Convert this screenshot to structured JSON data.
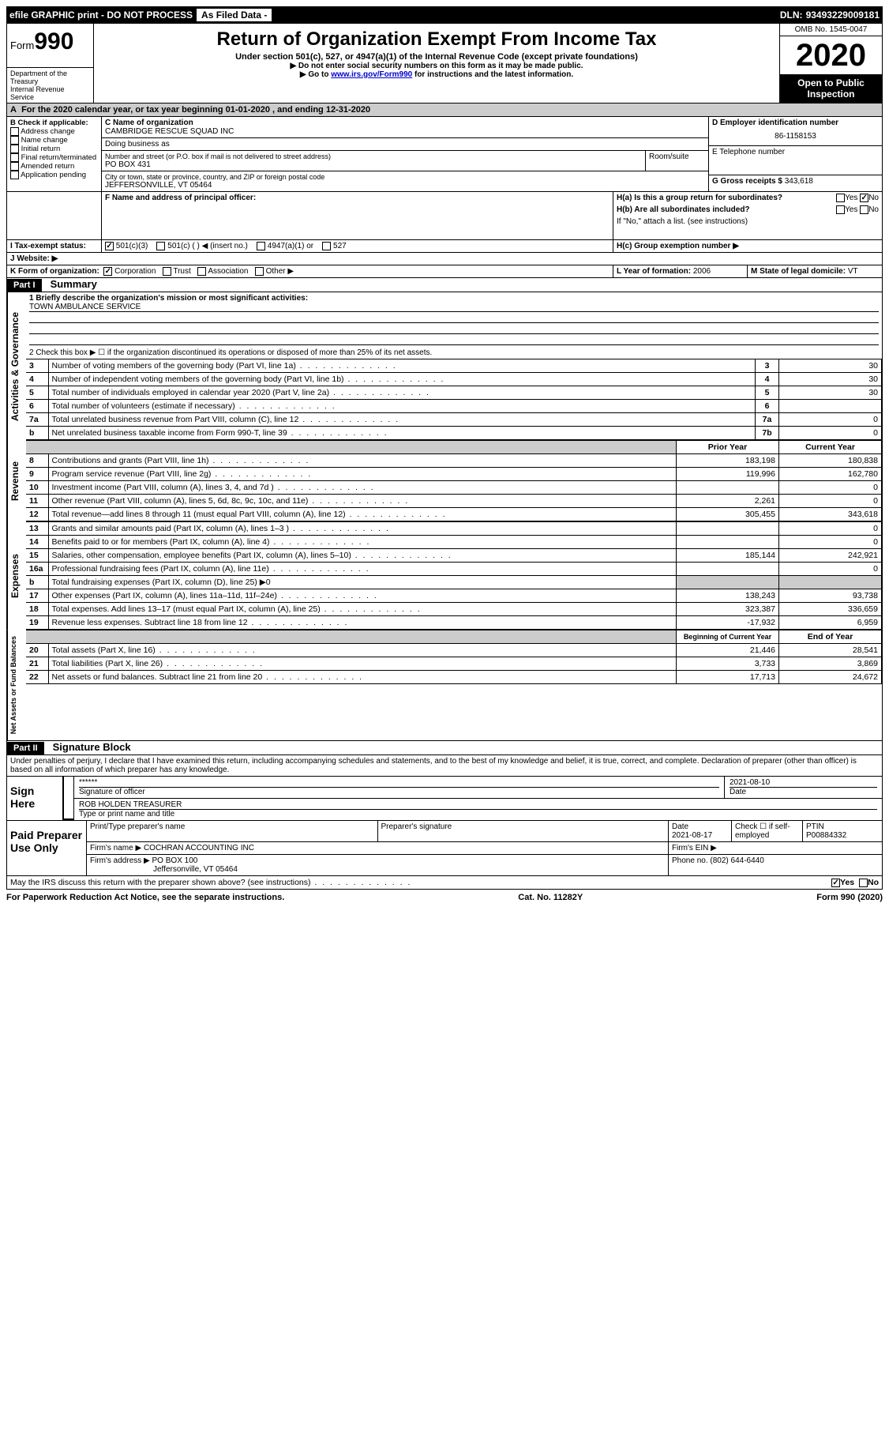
{
  "topbar": {
    "efile": "efile GRAPHIC print - DO NOT PROCESS",
    "asfiled": "As Filed Data -",
    "dln_label": "DLN:",
    "dln": "93493229009181"
  },
  "header": {
    "form_label": "Form",
    "form_num": "990",
    "dept1": "Department of the Treasury",
    "dept2": "Internal Revenue Service",
    "title": "Return of Organization Exempt From Income Tax",
    "sub1": "Under section 501(c), 527, or 4947(a)(1) of the Internal Revenue Code (except private foundations)",
    "sub2": "▶ Do not enter social security numbers on this form as it may be made public.",
    "sub3_pre": "▶ Go to ",
    "sub3_link": "www.irs.gov/Form990",
    "sub3_post": " for instructions and the latest information.",
    "omb": "OMB No. 1545-0047",
    "year": "2020",
    "open": "Open to Public Inspection"
  },
  "A": {
    "text": "For the 2020 calendar year, or tax year beginning 01-01-2020   , and ending 12-31-2020"
  },
  "B": {
    "label": "B Check if applicable:",
    "opts": [
      "Address change",
      "Name change",
      "Initial return",
      "Final return/terminated",
      "Amended return",
      "Application pending"
    ]
  },
  "C": {
    "name_label": "C Name of organization",
    "name": "CAMBRIDGE RESCUE SQUAD INC",
    "dba_label": "Doing business as",
    "street_label": "Number and street (or P.O. box if mail is not delivered to street address)",
    "street": "PO BOX 431",
    "room_label": "Room/suite",
    "city_label": "City or town, state or province, country, and ZIP or foreign postal code",
    "city": "JEFFERSONVILLE, VT  05464"
  },
  "D": {
    "label": "D Employer identification number",
    "val": "86-1158153"
  },
  "E": {
    "label": "E Telephone number"
  },
  "G": {
    "label": "G Gross receipts $",
    "val": "343,618"
  },
  "F": {
    "label": "F  Name and address of principal officer:"
  },
  "H": {
    "a": "H(a)  Is this a group return for subordinates?",
    "b": "H(b)  Are all subordinates included?",
    "b_note": "If \"No,\" attach a list. (see instructions)",
    "c": "H(c)  Group exemption number ▶",
    "yes": "Yes",
    "no": "No"
  },
  "I": {
    "label": "I   Tax-exempt status:",
    "o1": "501(c)(3)",
    "o2": "501(c) (   ) ◀ (insert no.)",
    "o3": "4947(a)(1) or",
    "o4": "527"
  },
  "J": {
    "label": "J   Website: ▶"
  },
  "K": {
    "label": "K Form of organization:",
    "o1": "Corporation",
    "o2": "Trust",
    "o3": "Association",
    "o4": "Other ▶"
  },
  "L": {
    "label": "L Year of formation:",
    "val": "2006"
  },
  "M": {
    "label": "M State of legal domicile:",
    "val": "VT"
  },
  "part1": {
    "hdr": "Part I",
    "title": "Summary",
    "q1": "1 Briefly describe the organization's mission or most significant activities:",
    "mission": "TOWN AMBULANCE SERVICE",
    "q2": "2   Check this box ▶ ☐  if the organization discontinued its operations or disposed of more than 25% of its net assets.",
    "rows_top": [
      {
        "n": "3",
        "t": "Number of voting members of the governing body (Part VI, line 1a)",
        "rn": "3",
        "v": "30"
      },
      {
        "n": "4",
        "t": "Number of independent voting members of the governing body (Part VI, line 1b)",
        "rn": "4",
        "v": "30"
      },
      {
        "n": "5",
        "t": "Total number of individuals employed in calendar year 2020 (Part V, line 2a)",
        "rn": "5",
        "v": "30"
      },
      {
        "n": "6",
        "t": "Total number of volunteers (estimate if necessary)",
        "rn": "6",
        "v": ""
      },
      {
        "n": "7a",
        "t": "Total unrelated business revenue from Part VIII, column (C), line 12",
        "rn": "7a",
        "v": "0"
      },
      {
        "n": "b",
        "t": "Net unrelated business taxable income from Form 990-T, line 39",
        "rn": "7b",
        "v": "0"
      }
    ],
    "col_prior": "Prior Year",
    "col_current": "Current Year",
    "revenue": [
      {
        "n": "8",
        "t": "Contributions and grants (Part VIII, line 1h)",
        "p": "183,198",
        "c": "180,838"
      },
      {
        "n": "9",
        "t": "Program service revenue (Part VIII, line 2g)",
        "p": "119,996",
        "c": "162,780"
      },
      {
        "n": "10",
        "t": "Investment income (Part VIII, column (A), lines 3, 4, and 7d )",
        "p": "",
        "c": "0"
      },
      {
        "n": "11",
        "t": "Other revenue (Part VIII, column (A), lines 5, 6d, 8c, 9c, 10c, and 11e)",
        "p": "2,261",
        "c": "0"
      },
      {
        "n": "12",
        "t": "Total revenue—add lines 8 through 11 (must equal Part VIII, column (A), line 12)",
        "p": "305,455",
        "c": "343,618"
      }
    ],
    "expenses": [
      {
        "n": "13",
        "t": "Grants and similar amounts paid (Part IX, column (A), lines 1–3 )",
        "p": "",
        "c": "0"
      },
      {
        "n": "14",
        "t": "Benefits paid to or for members (Part IX, column (A), line 4)",
        "p": "",
        "c": "0"
      },
      {
        "n": "15",
        "t": "Salaries, other compensation, employee benefits (Part IX, column (A), lines 5–10)",
        "p": "185,144",
        "c": "242,921"
      },
      {
        "n": "16a",
        "t": "Professional fundraising fees (Part IX, column (A), line 11e)",
        "p": "",
        "c": "0"
      },
      {
        "n": "b",
        "t": "Total fundraising expenses (Part IX, column (D), line 25)  ▶0",
        "p": "shade",
        "c": "shade"
      },
      {
        "n": "17",
        "t": "Other expenses (Part IX, column (A), lines 11a–11d, 11f–24e)",
        "p": "138,243",
        "c": "93,738"
      },
      {
        "n": "18",
        "t": "Total expenses. Add lines 13–17 (must equal Part IX, column (A), line 25)",
        "p": "323,387",
        "c": "336,659"
      },
      {
        "n": "19",
        "t": "Revenue less expenses. Subtract line 18 from line 12",
        "p": "-17,932",
        "c": "6,959"
      }
    ],
    "col_begin": "Beginning of Current Year",
    "col_end": "End of Year",
    "netassets": [
      {
        "n": "20",
        "t": "Total assets (Part X, line 16)",
        "p": "21,446",
        "c": "28,541"
      },
      {
        "n": "21",
        "t": "Total liabilities (Part X, line 26)",
        "p": "3,733",
        "c": "3,869"
      },
      {
        "n": "22",
        "t": "Net assets or fund balances. Subtract line 21 from line 20",
        "p": "17,713",
        "c": "24,672"
      }
    ],
    "side_act": "Activities & Governance",
    "side_rev": "Revenue",
    "side_exp": "Expenses",
    "side_net": "Net Assets or Fund Balances"
  },
  "part2": {
    "hdr": "Part II",
    "title": "Signature Block",
    "decl": "Under penalties of perjury, I declare that I have examined this return, including accompanying schedules and statements, and to the best of my knowledge and belief, it is true, correct, and complete. Declaration of preparer (other than officer) is based on all information of which preparer has any knowledge."
  },
  "sign": {
    "label": "Sign Here",
    "stars": "******",
    "sig_of_officer": "Signature of officer",
    "date": "2021-08-10",
    "date_label": "Date",
    "name": "ROB HOLDEN TREASURER",
    "name_label": "Type or print name and title"
  },
  "paid": {
    "label": "Paid Preparer Use Only",
    "h1": "Print/Type preparer's name",
    "h2": "Preparer's signature",
    "h3": "Date",
    "h3v": "2021-08-17",
    "h4": "Check ☐ if self-employed",
    "h5": "PTIN",
    "h5v": "P00884332",
    "firm_name_label": "Firm's name    ▶",
    "firm_name": "COCHRAN ACCOUNTING INC",
    "firm_ein_label": "Firm's EIN ▶",
    "firm_addr_label": "Firm's address ▶",
    "firm_addr1": "PO BOX 100",
    "firm_addr2": "Jeffersonville, VT  05464",
    "phone_label": "Phone no.",
    "phone": "(802) 644-6440"
  },
  "discuss": {
    "q": "May the IRS discuss this return with the preparer shown above? (see instructions)",
    "yes": "Yes",
    "no": "No"
  },
  "footer": {
    "left": "For Paperwork Reduction Act Notice, see the separate instructions.",
    "mid": "Cat. No. 11282Y",
    "right": "Form 990 (2020)"
  }
}
